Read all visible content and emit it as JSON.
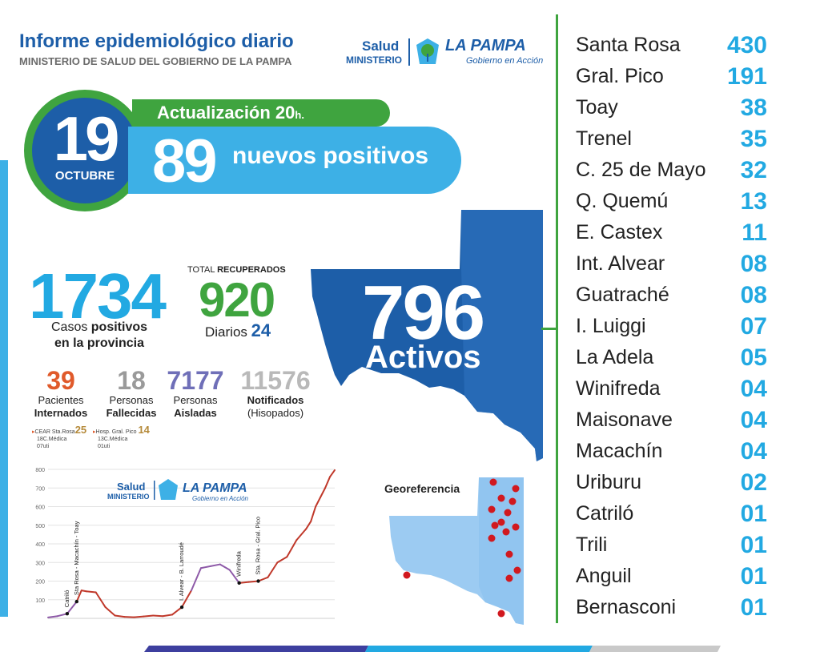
{
  "header": {
    "title": "Informe epidemiológico diario",
    "subtitle": "MINISTERIO DE SALUD DEL GOBIERNO DE LA PAMPA",
    "logo": {
      "salud": "Salud",
      "ministerio": "MINISTERIO",
      "la_pampa": "LA PAMPA",
      "gobierno": "Gobierno en Acción"
    }
  },
  "date": {
    "day": "19",
    "month": "OCTUBRE"
  },
  "update": {
    "label": "Actualización 20",
    "suffix": "h."
  },
  "new_positives": {
    "number": "89",
    "label": "nuevos positivos"
  },
  "totals": {
    "positives": "1734",
    "positives_label_1": "Casos positivos",
    "positives_label_1_bold": "positivos",
    "positives_label_2": "en la provincia",
    "recovered_title_1": "TOTAL",
    "recovered_title_2": "RECUPERADOS",
    "recovered": "920",
    "daily_label": "Diarios",
    "daily_value": "24"
  },
  "stats": [
    {
      "number": "39",
      "line1": "Pacientes",
      "line2": "Internados",
      "color": "#e05a2b"
    },
    {
      "number": "18",
      "line1": "Personas",
      "line2": "Fallecidas",
      "color": "#9a9a9a"
    },
    {
      "number": "7177",
      "line1": "Personas",
      "line2": "Aisladas",
      "color": "#6f6fb8"
    },
    {
      "number": "11576",
      "line1": "Notificados",
      "line2": "(Hisopados)",
      "color": "#b9b9b9"
    }
  ],
  "detail": {
    "cear_label": "CEAR Sta.Rosa",
    "cear_num": "25",
    "cear_l1": "18C.Médica",
    "cear_l2": "07uti",
    "hosp_label": "Hosp. Gral. Pico",
    "hosp_num": "14",
    "hosp_l1": "13C.Médica",
    "hosp_l2": "01uti"
  },
  "active": {
    "number": "796",
    "label": "Activos"
  },
  "cities": [
    {
      "name": "Santa Rosa",
      "count": "430"
    },
    {
      "name": "Gral. Pico",
      "count": "191"
    },
    {
      "name": "Toay",
      "count": "38"
    },
    {
      "name": "Trenel",
      "count": "35"
    },
    {
      "name": "C. 25 de Mayo",
      "count": "32"
    },
    {
      "name": "Q. Quemú",
      "count": "13"
    },
    {
      "name": "E. Castex",
      "count": "11"
    },
    {
      "name": "Int. Alvear",
      "count": "08"
    },
    {
      "name": "Guatraché",
      "count": "08"
    },
    {
      "name": "I. Luiggi",
      "count": "07"
    },
    {
      "name": "La Adela",
      "count": "05"
    },
    {
      "name": "Winifreda",
      "count": "04"
    },
    {
      "name": "Maisonave",
      "count": "04"
    },
    {
      "name": "Macachín",
      "count": "04"
    },
    {
      "name": "Uriburu",
      "count": "02"
    },
    {
      "name": "Catriló",
      "count": "01"
    },
    {
      "name": "Trili",
      "count": "01"
    },
    {
      "name": "Anguil",
      "count": "01"
    },
    {
      "name": "Bernasconi",
      "count": "01"
    }
  ],
  "geo": {
    "title": "Georeferencia"
  },
  "colors": {
    "blue": "#1d5ea8",
    "light_blue": "#3db0e6",
    "cyan": "#22a9e2",
    "green": "#3fa43f",
    "line_red": "#c0392b",
    "line_purple": "#8e5aa8"
  },
  "chart_data": {
    "type": "line",
    "ylim": [
      0,
      800
    ],
    "yticks": [
      "800",
      "700",
      "600",
      "500",
      "400",
      "300",
      "200",
      "100"
    ],
    "x": [
      0,
      4,
      8,
      12,
      14,
      16,
      20,
      24,
      28,
      32,
      36,
      40,
      44,
      48,
      52,
      56,
      60,
      64,
      68,
      72,
      76,
      80,
      84,
      88,
      92,
      96,
      100,
      104,
      108,
      110,
      112,
      114,
      116,
      118,
      120
    ],
    "values": [
      5,
      12,
      25,
      90,
      150,
      145,
      140,
      60,
      15,
      8,
      6,
      10,
      15,
      12,
      20,
      60,
      150,
      270,
      280,
      290,
      260,
      190,
      195,
      200,
      220,
      300,
      330,
      420,
      480,
      520,
      600,
      650,
      700,
      760,
      796
    ],
    "annotations": [
      {
        "label": "Catriló",
        "x": 8
      },
      {
        "label": "Sta Rosa - Macachín - Toay",
        "x": 12
      },
      {
        "label": "I. Alvear - B. Larroudé",
        "x": 56
      },
      {
        "label": "Winifreda",
        "x": 80
      },
      {
        "label": "Sta. Rosa - Gral. Pico",
        "x": 88
      }
    ]
  }
}
